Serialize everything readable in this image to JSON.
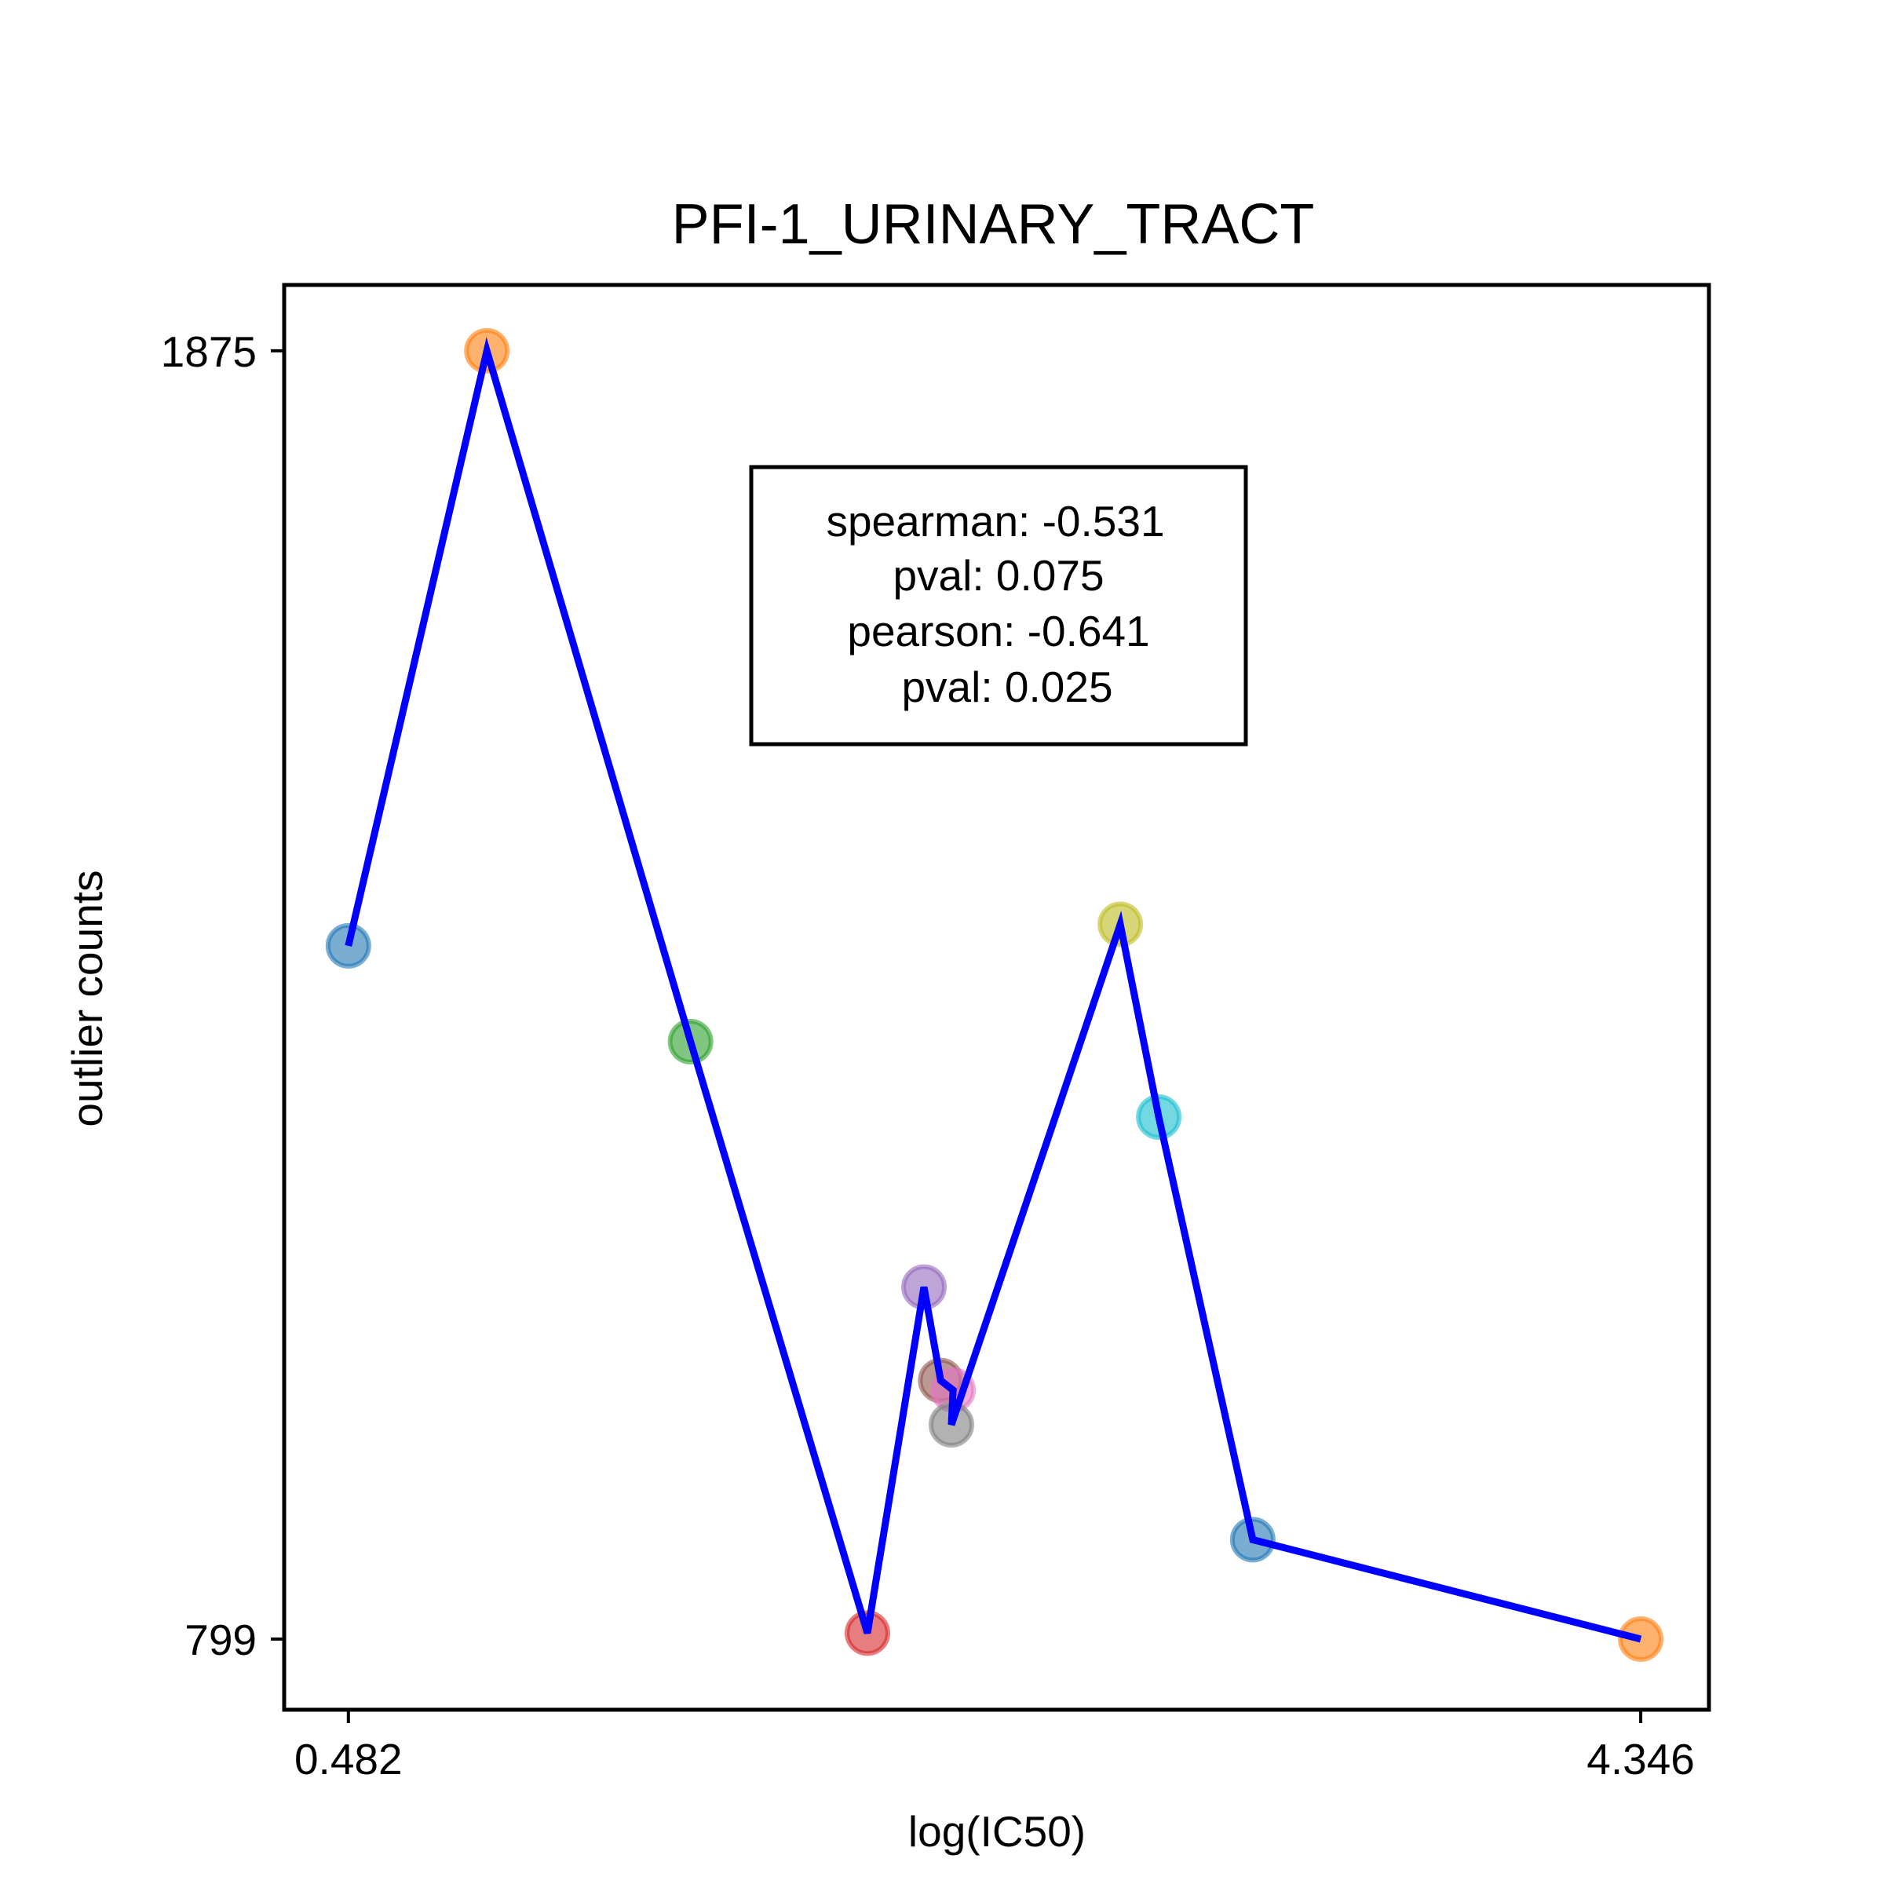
{
  "chart_data": {
    "type": "scatter",
    "title": "PFI-1_URINARY_TRACT",
    "xlabel": "log(IC50)",
    "ylabel": "outlier counts",
    "xlim": [
      0.29,
      4.55
    ],
    "ylim": [
      740,
      1930
    ],
    "xticks": [
      {
        "value": 0.482,
        "label": "0.482"
      },
      {
        "value": 4.346,
        "label": "4.346"
      }
    ],
    "yticks": [
      {
        "value": 799,
        "label": "799"
      },
      {
        "value": 1875,
        "label": "1875"
      }
    ],
    "grid": false,
    "line_color": "#0000ff",
    "points": [
      {
        "x": 0.482,
        "y": 1378,
        "color": "#1f77b4"
      },
      {
        "x": 0.896,
        "y": 1875,
        "color": "#ff7f0e"
      },
      {
        "x": 1.505,
        "y": 1298,
        "color": "#2ca02c"
      },
      {
        "x": 2.034,
        "y": 804,
        "color": "#d62728"
      },
      {
        "x": 2.203,
        "y": 1093,
        "color": "#9467bd"
      },
      {
        "x": 2.253,
        "y": 1015,
        "color": "#8c564b"
      },
      {
        "x": 2.29,
        "y": 1007,
        "color": "#e377c2"
      },
      {
        "x": 2.285,
        "y": 978,
        "color": "#7f7f7f"
      },
      {
        "x": 2.79,
        "y": 1396,
        "color": "#bcbd22"
      },
      {
        "x": 2.905,
        "y": 1235,
        "color": "#17becf"
      },
      {
        "x": 3.186,
        "y": 882,
        "color": "#1f77b4"
      },
      {
        "x": 4.346,
        "y": 799,
        "color": "#ff7f0e"
      }
    ],
    "stats_box": {
      "lines": [
        "spearman: -0.531",
        "pval: 0.075",
        "pearson: -0.641",
        "pval: 0.025"
      ]
    }
  }
}
